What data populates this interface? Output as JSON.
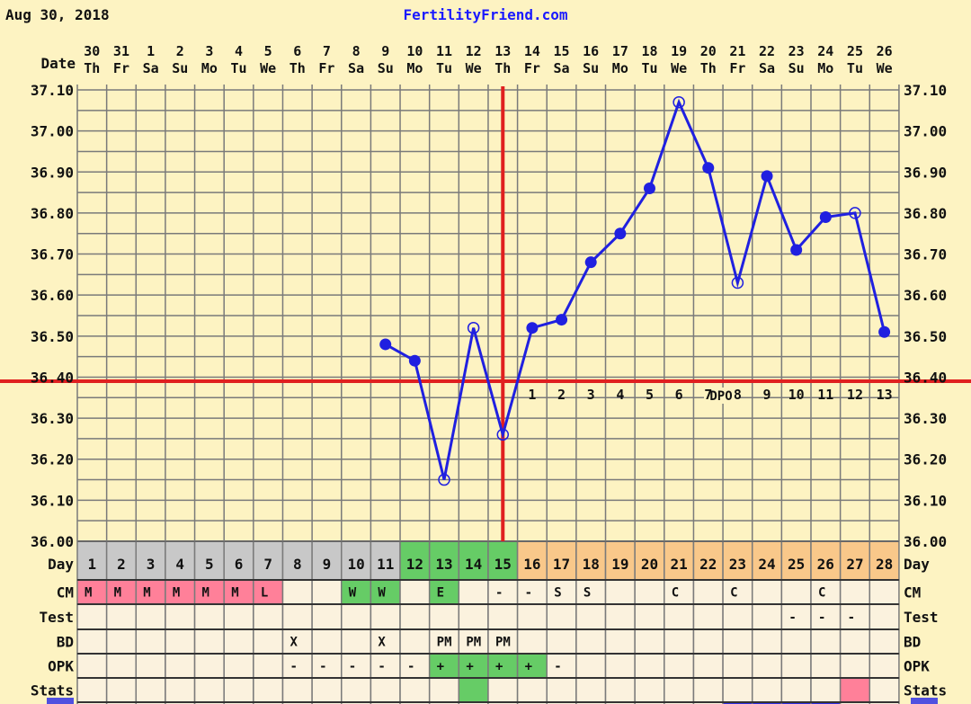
{
  "header": {
    "date": "Aug 30, 2018",
    "site": "FertilityFriend.com"
  },
  "labels": {
    "date": "Date",
    "day": "Day",
    "cm": "CM",
    "test": "Test",
    "bd": "BD",
    "opk": "OPK",
    "stats": "Stats",
    "dpo": "DPO"
  },
  "colors": {
    "background": "#fdf3c2",
    "grid": "#7a7a7a",
    "temp_line": "#2020e0",
    "coverline": "#e02020",
    "cell": "#fbf2de",
    "day_gray": "#c8c8c8",
    "green": "#66cc66",
    "orange": "#f9c88a",
    "pink": "#ff8099",
    "blue": "#3030e0"
  },
  "chart_data": {
    "type": "line",
    "title": "",
    "ylim": [
      36.0,
      37.1
    ],
    "y_ticks": [
      "37.10",
      "37.00",
      "36.90",
      "36.80",
      "36.70",
      "36.60",
      "36.50",
      "36.40",
      "36.30",
      "36.20",
      "36.10",
      "36.00"
    ],
    "grid": true,
    "coverline": 36.39,
    "ovulation_day": 15,
    "dates": [
      "30",
      "31",
      "1",
      "2",
      "3",
      "4",
      "5",
      "6",
      "7",
      "8",
      "9",
      "10",
      "11",
      "12",
      "13",
      "14",
      "15",
      "16",
      "17",
      "18",
      "19",
      "20",
      "21",
      "22",
      "23",
      "24",
      "25",
      "26"
    ],
    "weekdays": [
      "Th",
      "Fr",
      "Sa",
      "Su",
      "Mo",
      "Tu",
      "We",
      "Th",
      "Fr",
      "Sa",
      "Su",
      "Mo",
      "Tu",
      "We",
      "Th",
      "Fr",
      "Sa",
      "Su",
      "Mo",
      "Tu",
      "We",
      "Th",
      "Fr",
      "Sa",
      "Su",
      "Mo",
      "Tu",
      "We"
    ],
    "cycle_days": [
      "1",
      "2",
      "3",
      "4",
      "5",
      "6",
      "7",
      "8",
      "9",
      "10",
      "11",
      "12",
      "13",
      "14",
      "15",
      "16",
      "17",
      "18",
      "19",
      "20",
      "21",
      "22",
      "23",
      "24",
      "25",
      "26",
      "27",
      "28"
    ],
    "day_colors": [
      "gray",
      "gray",
      "gray",
      "gray",
      "gray",
      "gray",
      "gray",
      "gray",
      "gray",
      "gray",
      "gray",
      "green",
      "green",
      "green",
      "green",
      "orange",
      "orange",
      "orange",
      "orange",
      "orange",
      "orange",
      "orange",
      "orange",
      "orange",
      "orange",
      "orange",
      "orange",
      "orange"
    ],
    "temps": [
      null,
      null,
      null,
      null,
      null,
      null,
      null,
      null,
      null,
      null,
      36.48,
      36.44,
      36.15,
      36.52,
      36.26,
      36.52,
      36.54,
      36.68,
      36.75,
      36.86,
      37.07,
      36.91,
      36.63,
      36.89,
      36.71,
      36.79,
      36.8,
      36.51
    ],
    "open_points": [
      13,
      14,
      15,
      21,
      23,
      27
    ],
    "dpo": [
      "",
      "",
      "",
      "",
      "",
      "",
      "",
      "",
      "",
      "",
      "",
      "",
      "",
      "",
      "",
      "1",
      "2",
      "3",
      "4",
      "5",
      "6",
      "7",
      "8",
      "9",
      "10",
      "11",
      "12",
      "13"
    ],
    "cm": [
      "M",
      "M",
      "M",
      "M",
      "M",
      "M",
      "L",
      "",
      "",
      "W",
      "W",
      "",
      "E",
      "",
      "-",
      "-",
      "S",
      "S",
      "",
      "",
      "C",
      "",
      "C",
      "",
      "",
      "C",
      "",
      ""
    ],
    "cm_colors": [
      "pink",
      "pink",
      "pink",
      "pink",
      "pink",
      "pink",
      "pink",
      "",
      "",
      "green",
      "green",
      "",
      "green",
      "",
      "",
      "",
      "",
      "",
      "",
      "",
      "",
      "",
      "",
      "",
      "",
      "",
      "",
      ""
    ],
    "test": [
      "",
      "",
      "",
      "",
      "",
      "",
      "",
      "",
      "",
      "",
      "",
      "",
      "",
      "",
      "",
      "",
      "",
      "",
      "",
      "",
      "",
      "",
      "",
      "",
      "-",
      "-",
      "-",
      ""
    ],
    "bd": [
      "",
      "",
      "",
      "",
      "",
      "",
      "",
      "X",
      "",
      "",
      "X",
      "",
      "PM",
      "PM",
      "PM",
      "",
      "",
      "",
      "",
      "",
      "",
      "",
      "",
      "",
      "",
      "",
      "",
      ""
    ],
    "opk": [
      "",
      "",
      "",
      "",
      "",
      "",
      "",
      "-",
      "-",
      "-",
      "-",
      "-",
      "+",
      "+",
      "+",
      "+",
      "-",
      "",
      "",
      "",
      "",
      "",
      "",
      "",
      "",
      "",
      "",
      ""
    ],
    "opk_colors": [
      "",
      "",
      "",
      "",
      "",
      "",
      "",
      "",
      "",
      "",
      "",
      "",
      "green",
      "green",
      "green",
      "green",
      "",
      "",
      "",
      "",
      "",
      "",
      "",
      "",
      "",
      "",
      "",
      ""
    ],
    "stats_colors": [
      "",
      "",
      "",
      "",
      "",
      "",
      "",
      "",
      "",
      "",
      "",
      "",
      "",
      "green",
      "",
      "",
      "",
      "",
      "",
      "",
      "",
      "",
      "",
      "",
      "",
      "",
      "pink",
      ""
    ],
    "next_row_colors": [
      "",
      "",
      "",
      "",
      "",
      "",
      "",
      "",
      "",
      "",
      "",
      "",
      "",
      "",
      "",
      "",
      "",
      "",
      "",
      "",
      "",
      "",
      "blue",
      "blue",
      "blue",
      "blue",
      "",
      ""
    ]
  }
}
